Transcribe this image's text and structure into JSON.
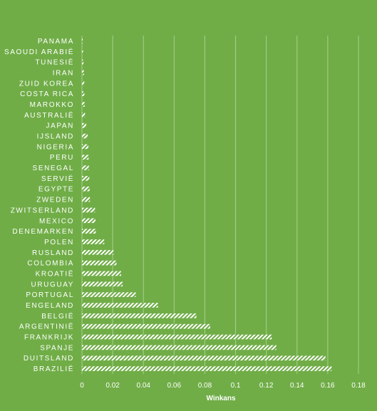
{
  "chart_data": {
    "type": "bar",
    "orientation": "horizontal",
    "categories": [
      "PANAMA",
      "SAOUDI ARABIË",
      "TUNESIË",
      "IRAN",
      "ZUID KOREA",
      "COSTA RICA",
      "MAROKKO",
      "AUSTRALIË",
      "JAPAN",
      "IJSLAND",
      "NIGERIA",
      "PERU",
      "SENEGAL",
      "SERVIË",
      "EGYPTE",
      "ZWEDEN",
      "ZWITSERLAND",
      "MEXICO",
      "DENEMARKEN",
      "POLEN",
      "RUSLAND",
      "COLOMBIA",
      "KROATIË",
      "URUGUAY",
      "PORTUGAL",
      "ENGELAND",
      "BELGIË",
      "ARGENTINIË",
      "FRANKRIJK",
      "SPANJE",
      "DUITSLAND",
      "BRAZILIË"
    ],
    "values": [
      0.0005,
      0.0007,
      0.001,
      0.0013,
      0.0015,
      0.0016,
      0.0018,
      0.002,
      0.0028,
      0.0037,
      0.0042,
      0.0043,
      0.0045,
      0.0048,
      0.005,
      0.0052,
      0.0085,
      0.0088,
      0.009,
      0.0145,
      0.0205,
      0.0225,
      0.0255,
      0.0265,
      0.035,
      0.0495,
      0.0745,
      0.0835,
      0.1235,
      0.1265,
      0.1585,
      0.1625
    ],
    "xlabel": "Winkans",
    "ylabel": "",
    "title": "",
    "xlim": [
      0,
      0.18
    ],
    "xticks": [
      "0",
      "0.02",
      "0.04",
      "0.06",
      "0.08",
      "0.1",
      "0.12",
      "0.14",
      "0.16",
      "0.18"
    ],
    "grid": true,
    "legend": "none",
    "colors": {
      "background": "#70ad47",
      "bar": "#ffffff",
      "grid": "#a9cf8e",
      "text": "#ffffff"
    }
  }
}
